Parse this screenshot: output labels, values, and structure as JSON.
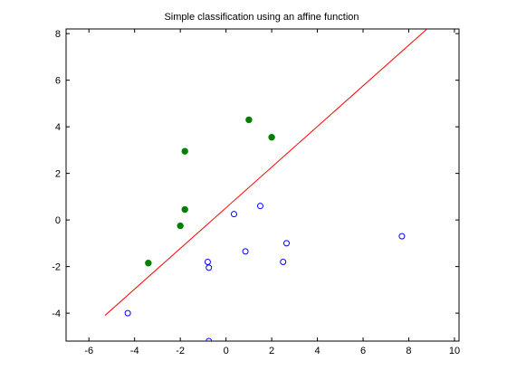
{
  "chart_data": {
    "type": "scatter",
    "title": "Simple classification using an affine function",
    "xlabel": "",
    "ylabel": "",
    "xlim": [
      -7,
      10.2
    ],
    "ylim": [
      -5.2,
      8.2
    ],
    "x_ticks": [
      -6,
      -4,
      -2,
      0,
      2,
      4,
      6,
      8,
      10
    ],
    "y_ticks": [
      -4,
      -2,
      0,
      2,
      4,
      6,
      8
    ],
    "grid": false,
    "colors": {
      "positive": "#007f00",
      "negative": "#0000ff",
      "line": "#ff0000"
    },
    "series": [
      {
        "marker": "filled-circle",
        "points": [
          {
            "x": -3.4,
            "y": -1.85
          },
          {
            "x": -2.0,
            "y": -0.25
          },
          {
            "x": -1.8,
            "y": 0.45
          },
          {
            "x": -1.8,
            "y": 2.95
          },
          {
            "x": 1.0,
            "y": 4.3
          },
          {
            "x": 2.0,
            "y": 3.55
          }
        ]
      },
      {
        "marker": "open-circle",
        "points": [
          {
            "x": -4.3,
            "y": -4.0
          },
          {
            "x": -0.8,
            "y": -1.8
          },
          {
            "x": -0.75,
            "y": -2.05
          },
          {
            "x": -0.75,
            "y": -5.2
          },
          {
            "x": 0.35,
            "y": 0.25
          },
          {
            "x": 0.85,
            "y": -1.35
          },
          {
            "x": 1.5,
            "y": 0.6
          },
          {
            "x": 2.5,
            "y": -1.8
          },
          {
            "x": 2.65,
            "y": -1.0
          },
          {
            "x": 7.7,
            "y": -0.7
          }
        ]
      }
    ],
    "line": {
      "points": [
        {
          "x": -5.3,
          "y": -4.1
        },
        {
          "x": 8.8,
          "y": 8.2
        }
      ]
    }
  }
}
